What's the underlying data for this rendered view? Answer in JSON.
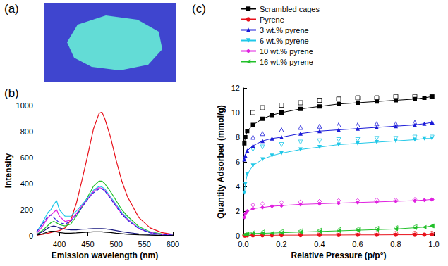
{
  "image_panel": {
    "panel": "(a)"
  },
  "chart_data": [
    {
      "panel": "(b)",
      "type": "line",
      "x_label": "Emission wavelength (nm)",
      "y_label": "Intensity",
      "x": [
        360,
        370,
        380,
        385,
        390,
        395,
        400,
        410,
        420,
        430,
        440,
        450,
        460,
        470,
        475,
        480,
        490,
        500,
        510,
        520,
        540,
        560,
        580,
        600
      ],
      "xlim": [
        360,
        600
      ],
      "xticks": [
        400,
        450,
        500,
        550,
        600
      ],
      "ylim": [
        0,
        1000
      ],
      "yticks": [
        0,
        200,
        400,
        600,
        800,
        1000
      ],
      "grid": false,
      "series": [
        {
          "color": "#e8101a",
          "line_style": "solid",
          "values": [
            5,
            10,
            20,
            25,
            30,
            35,
            40,
            60,
            120,
            250,
            430,
            620,
            820,
            940,
            950,
            900,
            760,
            580,
            420,
            300,
            140,
            60,
            25,
            10
          ]
        },
        {
          "color": "#22c02a",
          "line_style": "solid",
          "values": [
            10,
            40,
            80,
            100,
            110,
            100,
            85,
            75,
            90,
            150,
            220,
            300,
            380,
            420,
            420,
            400,
            340,
            270,
            200,
            150,
            70,
            30,
            15,
            8
          ]
        },
        {
          "color": "#20c8e8",
          "line_style": "solid",
          "values": [
            30,
            100,
            180,
            200,
            240,
            270,
            200,
            150,
            150,
            190,
            240,
            290,
            350,
            380,
            375,
            360,
            300,
            240,
            180,
            130,
            60,
            25,
            12,
            5
          ]
        },
        {
          "color": "#e020e0",
          "line_style": "solid",
          "values": [
            20,
            70,
            140,
            160,
            180,
            200,
            150,
            110,
            120,
            170,
            230,
            280,
            340,
            370,
            365,
            350,
            290,
            230,
            170,
            125,
            55,
            25,
            10,
            5
          ]
        },
        {
          "color": "#2a2ae0",
          "line_style": "dashed",
          "values": [
            30,
            90,
            150,
            160,
            140,
            120,
            100,
            90,
            110,
            160,
            220,
            280,
            330,
            360,
            360,
            345,
            285,
            225,
            165,
            120,
            55,
            22,
            10,
            5
          ]
        },
        {
          "color": "#1a1a80",
          "line_style": "solid",
          "values": [
            10,
            30,
            60,
            70,
            75,
            70,
            60,
            50,
            45,
            45,
            50,
            52,
            55,
            55,
            55,
            53,
            48,
            40,
            32,
            25,
            15,
            8,
            4,
            2
          ]
        },
        {
          "color": "#000000",
          "line_style": "solid",
          "values": [
            5,
            15,
            30,
            35,
            35,
            30,
            25,
            20,
            20,
            22,
            25,
            28,
            30,
            30,
            30,
            28,
            25,
            20,
            16,
            12,
            7,
            4,
            2,
            1
          ]
        }
      ]
    },
    {
      "panel": "(c)",
      "type": "line",
      "legend": "top",
      "x_label": "Relative Pressure (p/p°)",
      "y_label": "Quantity Adsorbed (mmol/g)",
      "x": [
        0.005,
        0.01,
        0.02,
        0.05,
        0.1,
        0.15,
        0.2,
        0.3,
        0.4,
        0.5,
        0.6,
        0.7,
        0.8,
        0.9,
        0.95,
        0.99
      ],
      "desorption_x": [
        0.05,
        0.1,
        0.2,
        0.3,
        0.4,
        0.5,
        0.6,
        0.7,
        0.8,
        0.9,
        0.99
      ],
      "xlim": [
        0,
        1
      ],
      "xticks": [
        {
          "value": 0,
          "label": "0.0"
        },
        {
          "value": 0.2,
          "label": "0.2"
        },
        {
          "value": 0.4,
          "label": "0.4"
        },
        {
          "value": 0.6,
          "label": "0.6"
        },
        {
          "value": 0.8,
          "label": "0.8"
        },
        {
          "value": 1,
          "label": "1.0"
        }
      ],
      "ylim": [
        0,
        12
      ],
      "yticks": [
        0,
        2,
        4,
        6,
        8,
        10,
        12
      ],
      "grid": false,
      "series": [
        {
          "name": "Scrambled cages",
          "color": "#000000",
          "marker": "square",
          "values": [
            7.5,
            8.0,
            8.5,
            9.0,
            9.5,
            9.8,
            10.0,
            10.3,
            10.5,
            10.7,
            10.8,
            10.9,
            11.0,
            11.1,
            11.2,
            11.3
          ],
          "desorption": [
            10.0,
            10.4,
            10.6,
            10.8,
            11.0,
            11.1,
            11.2,
            11.2,
            11.3,
            11.3,
            11.3
          ]
        },
        {
          "name": "Pyrene",
          "color": "#e8101a",
          "marker": "circle",
          "values": [
            0.02,
            0.02,
            0.03,
            0.03,
            0.04,
            0.04,
            0.05,
            0.05,
            0.06,
            0.06,
            0.07,
            0.07,
            0.08,
            0.08,
            0.09,
            0.1
          ],
          "desorption": [
            0.08,
            0.1,
            0.12,
            0.13,
            0.14,
            0.15,
            0.16,
            0.17,
            0.18,
            0.19,
            0.2
          ]
        },
        {
          "name": "3 wt.% pyrene",
          "color": "#1a1ad8",
          "marker": "triangle",
          "values": [
            6.2,
            6.5,
            6.9,
            7.3,
            7.7,
            7.9,
            8.0,
            8.3,
            8.5,
            8.6,
            8.7,
            8.8,
            8.9,
            9.0,
            9.1,
            9.2
          ],
          "desorption": [
            8.0,
            8.3,
            8.6,
            8.8,
            8.9,
            9.0,
            9.0,
            9.1,
            9.1,
            9.2,
            9.2
          ]
        },
        {
          "name": "6 wt.% pyrene",
          "color": "#20c8e8",
          "marker": "triangle-down",
          "values": [
            3.5,
            4.2,
            5.0,
            5.7,
            6.2,
            6.5,
            6.7,
            7.0,
            7.2,
            7.4,
            7.5,
            7.6,
            7.7,
            7.8,
            7.9,
            7.9
          ],
          "desorption": [
            7.0,
            7.2,
            7.4,
            7.6,
            7.7,
            7.8,
            7.8,
            7.9,
            7.9,
            8.0,
            8.0
          ]
        },
        {
          "name": "10 wt.% pyrene",
          "color": "#e020e0",
          "marker": "diamond",
          "values": [
            1.5,
            1.8,
            2.0,
            2.2,
            2.3,
            2.4,
            2.45,
            2.55,
            2.6,
            2.65,
            2.7,
            2.75,
            2.8,
            2.85,
            2.9,
            2.95
          ],
          "desorption": [
            2.5,
            2.6,
            2.7,
            2.75,
            2.8,
            2.85,
            2.85,
            2.9,
            2.9,
            2.95,
            2.95
          ]
        },
        {
          "name": "16 wt.% pyrene",
          "color": "#22c02a",
          "marker": "triangle-left",
          "values": [
            0.1,
            0.12,
            0.15,
            0.18,
            0.2,
            0.22,
            0.25,
            0.3,
            0.35,
            0.4,
            0.45,
            0.5,
            0.55,
            0.65,
            0.7,
            0.8
          ],
          "desorption": [
            0.25,
            0.3,
            0.35,
            0.4,
            0.45,
            0.5,
            0.55,
            0.6,
            0.65,
            0.75,
            0.8
          ]
        }
      ]
    }
  ]
}
